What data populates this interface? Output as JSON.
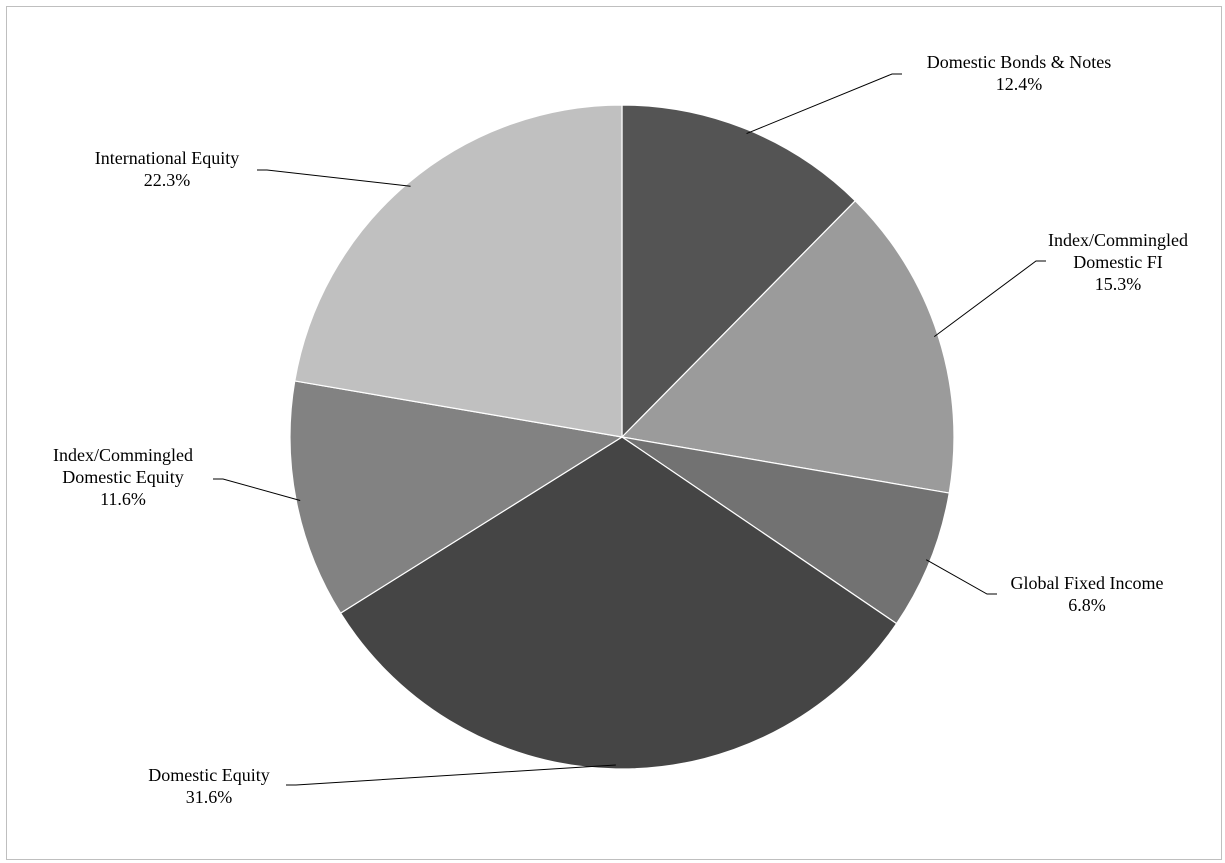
{
  "chart_data": {
    "type": "pie",
    "title": "",
    "slices": [
      {
        "name_lines": [
          "Domestic Bonds & Notes"
        ],
        "value": 12.4,
        "label": "12.4%",
        "color": "#545454"
      },
      {
        "name_lines": [
          "Index/Commingled",
          "Domestic FI"
        ],
        "value": 15.3,
        "label": "15.3%",
        "color": "#9b9b9b"
      },
      {
        "name_lines": [
          "Global Fixed Income"
        ],
        "value": 6.8,
        "label": "6.8%",
        "color": "#727272"
      },
      {
        "name_lines": [
          "Domestic Equity"
        ],
        "value": 31.6,
        "label": "31.6%",
        "color": "#454545"
      },
      {
        "name_lines": [
          "Index/Commingled",
          "Domestic Equity"
        ],
        "value": 11.6,
        "label": "11.6%",
        "color": "#828282"
      },
      {
        "name_lines": [
          "International Equity"
        ],
        "value": 22.3,
        "label": "22.3%",
        "color": "#c0c0c0"
      }
    ],
    "start_angle": "12 o'clock",
    "direction": "clockwise",
    "label_style": "outside with leader lines",
    "legend": "none"
  }
}
